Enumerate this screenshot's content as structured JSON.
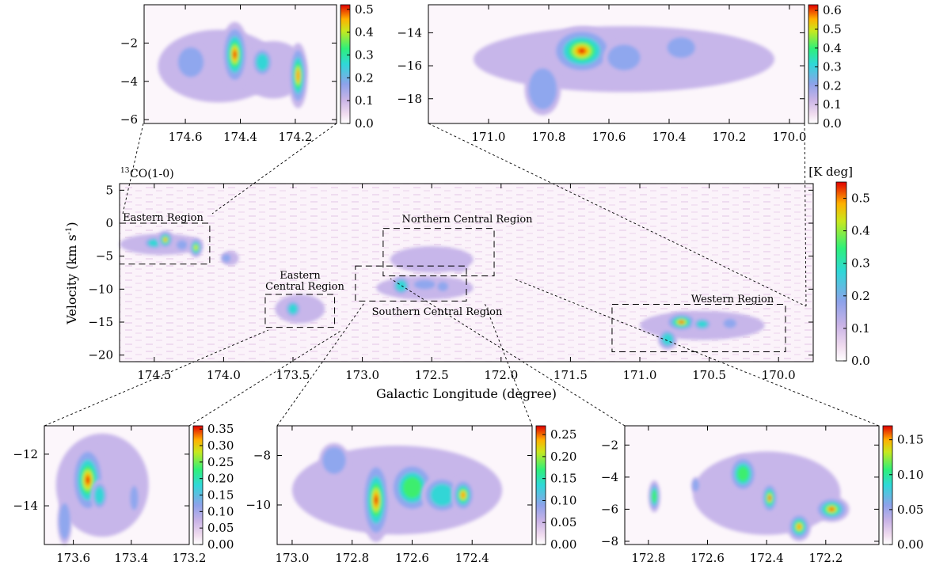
{
  "chart_data": [
    {
      "id": "main",
      "type": "heatmap",
      "title": "13CO(1-0)",
      "title_prefix": "13",
      "title_text": "CO(1-0)",
      "colorbar_unit": "[K deg]",
      "xlabel": "Galactic Longitude (degree)",
      "ylabel": "Velocity (km s",
      "ylabel_sup": "-1",
      "ylabel_close": ")",
      "xlim": [
        174.75,
        169.75
      ],
      "ylim": [
        -21,
        6
      ],
      "xticks": [
        174.5,
        174.0,
        173.5,
        173.0,
        172.5,
        172.0,
        171.5,
        171.0,
        170.5,
        170.0
      ],
      "xtick_labels": [
        "174.5",
        "174.0",
        "173.5",
        "173.0",
        "172.5",
        "172.0",
        "171.5",
        "171.0",
        "170.5",
        "170.0"
      ],
      "yticks": [
        5,
        0,
        -5,
        -10,
        -15,
        -20
      ],
      "ytick_labels": [
        "5",
        "0",
        "-5",
        "-10",
        "-15",
        "-20"
      ],
      "colorbar_ticks": [
        0.0,
        0.1,
        0.2,
        0.3,
        0.4,
        0.5
      ],
      "colorbar_labels": [
        "0.0",
        "0.1",
        "0.2",
        "0.3",
        "0.4",
        "0.5"
      ],
      "colorbar_range": [
        0,
        0.55
      ],
      "regions": [
        {
          "name": "Eastern Region",
          "label": "Eastern Region",
          "l_range": [
            174.75,
            174.1
          ],
          "v_range": [
            -6.2,
            0
          ]
        },
        {
          "name": "Eastern Central Region",
          "label_lines": [
            "Eastern",
            "Central Region"
          ],
          "l_range": [
            173.7,
            173.2
          ],
          "v_range": [
            -15.8,
            -10.8
          ]
        },
        {
          "name": "Southern Central Region",
          "label": "Southern Central Region",
          "l_range": [
            173.05,
            172.25
          ],
          "v_range": [
            -11.8,
            -6.5
          ]
        },
        {
          "name": "Northern Central Region",
          "label": "Northern Central Region",
          "l_range": [
            172.85,
            172.05
          ],
          "v_range": [
            -8.0,
            -0.8
          ]
        },
        {
          "name": "Western Region",
          "label": "Western Region",
          "l_range": [
            171.2,
            169.95
          ],
          "v_range": [
            -19.5,
            -12.3
          ]
        }
      ],
      "emission_peaks_K_deg": [
        {
          "l": 174.42,
          "v": -2.5,
          "peak": 0.5
        },
        {
          "l": 174.2,
          "v": -3.7,
          "peak": 0.45
        },
        {
          "l": 173.5,
          "v": -13.0,
          "peak": 0.3
        },
        {
          "l": 172.7,
          "v": -9.5,
          "peak": 0.25
        },
        {
          "l": 170.7,
          "v": -15.0,
          "peak": 0.55
        }
      ]
    },
    {
      "id": "inset-eastern",
      "type": "heatmap",
      "xlim": [
        174.75,
        174.05
      ],
      "ylim": [
        -6.2,
        0
      ],
      "xticks": [
        174.6,
        174.4,
        174.2
      ],
      "xtick_labels": [
        "174.6",
        "174.4",
        "174.2"
      ],
      "yticks": [
        -2,
        -4,
        -6
      ],
      "ytick_labels": [
        "-2",
        "-4",
        "-6"
      ],
      "colorbar_ticks": [
        0.0,
        0.1,
        0.2,
        0.3,
        0.4,
        0.5
      ],
      "colorbar_labels": [
        "0.0",
        "0.1",
        "0.2",
        "0.3",
        "0.4",
        "0.5"
      ],
      "colorbar_range": [
        0,
        0.52
      ],
      "emission_peaks_K_deg": [
        {
          "l": 174.42,
          "v": -2.5,
          "peak": 0.5
        },
        {
          "l": 174.19,
          "v": -3.7,
          "peak": 0.45
        }
      ]
    },
    {
      "id": "inset-western",
      "type": "heatmap",
      "xlim": [
        171.2,
        169.95
      ],
      "ylim": [
        -19.5,
        -12.3
      ],
      "xticks": [
        171.0,
        170.8,
        170.6,
        170.4,
        170.2,
        170.0
      ],
      "xtick_labels": [
        "171.0",
        "170.8",
        "170.6",
        "170.4",
        "170.2",
        "170.0"
      ],
      "yticks": [
        -14,
        -16,
        -18
      ],
      "ytick_labels": [
        "-14",
        "-16",
        "-18"
      ],
      "colorbar_ticks": [
        0.0,
        0.1,
        0.2,
        0.3,
        0.4,
        0.5,
        0.6
      ],
      "colorbar_labels": [
        "0.0",
        "0.1",
        "0.2",
        "0.3",
        "0.4",
        "0.5",
        "0.6"
      ],
      "colorbar_range": [
        0,
        0.63
      ],
      "emission_peaks_K_deg": [
        {
          "l": 170.7,
          "v": -15.0,
          "peak": 0.6
        }
      ]
    },
    {
      "id": "inset-eastern-central",
      "type": "heatmap",
      "xlim": [
        173.7,
        173.2
      ],
      "ylim": [
        -15.5,
        -10.9
      ],
      "xticks": [
        173.6,
        173.4,
        173.2
      ],
      "xtick_labels": [
        "173.6",
        "173.4",
        "173.2"
      ],
      "yticks": [
        -12,
        -14
      ],
      "ytick_labels": [
        "-12",
        "-14"
      ],
      "colorbar_ticks": [
        0.0,
        0.05,
        0.1,
        0.15,
        0.2,
        0.25,
        0.3,
        0.35
      ],
      "colorbar_labels": [
        "0.00",
        "0.05",
        "0.10",
        "0.15",
        "0.20",
        "0.25",
        "0.30",
        "0.35"
      ],
      "colorbar_range": [
        0,
        0.36
      ],
      "emission_peaks_K_deg": [
        {
          "l": 173.55,
          "v": -13.0,
          "peak": 0.35
        }
      ]
    },
    {
      "id": "inset-southern-central",
      "type": "heatmap",
      "xlim": [
        173.05,
        172.2
      ],
      "ylim": [
        -11.6,
        -6.8
      ],
      "xticks": [
        173.0,
        172.8,
        172.6,
        172.4
      ],
      "xtick_labels": [
        "173.0",
        "172.8",
        "172.6",
        "172.4"
      ],
      "yticks": [
        -8,
        -10
      ],
      "ytick_labels": [
        "-8",
        "-10"
      ],
      "colorbar_ticks": [
        0.0,
        0.05,
        0.1,
        0.15,
        0.2,
        0.25
      ],
      "colorbar_labels": [
        "0.00",
        "0.05",
        "0.10",
        "0.15",
        "0.20",
        "0.25"
      ],
      "colorbar_range": [
        0,
        0.27
      ],
      "emission_peaks_K_deg": [
        {
          "l": 172.72,
          "v": -9.8,
          "peak": 0.27
        },
        {
          "l": 172.43,
          "v": -9.6,
          "peak": 0.25
        }
      ]
    },
    {
      "id": "inset-northern-central",
      "type": "heatmap",
      "xlim": [
        172.88,
        172.02
      ],
      "ylim": [
        -8.2,
        -0.8
      ],
      "xticks": [
        172.8,
        172.6,
        172.4,
        172.2
      ],
      "xtick_labels": [
        "172.8",
        "172.6",
        "172.4",
        "172.2"
      ],
      "yticks": [
        -2,
        -4,
        -6,
        -8
      ],
      "ytick_labels": [
        "-2",
        "-4",
        "-6",
        "-8"
      ],
      "colorbar_ticks": [
        0.0,
        0.05,
        0.1,
        0.15
      ],
      "colorbar_labels": [
        "0.00",
        "0.05",
        "0.10",
        "0.15"
      ],
      "colorbar_range": [
        0,
        0.17
      ],
      "emission_peaks_K_deg": [
        {
          "l": 172.39,
          "v": -5.3,
          "peak": 0.17
        },
        {
          "l": 172.16,
          "v": -5.9,
          "peak": 0.16
        },
        {
          "l": 172.29,
          "v": -7.2,
          "peak": 0.15
        }
      ]
    }
  ]
}
